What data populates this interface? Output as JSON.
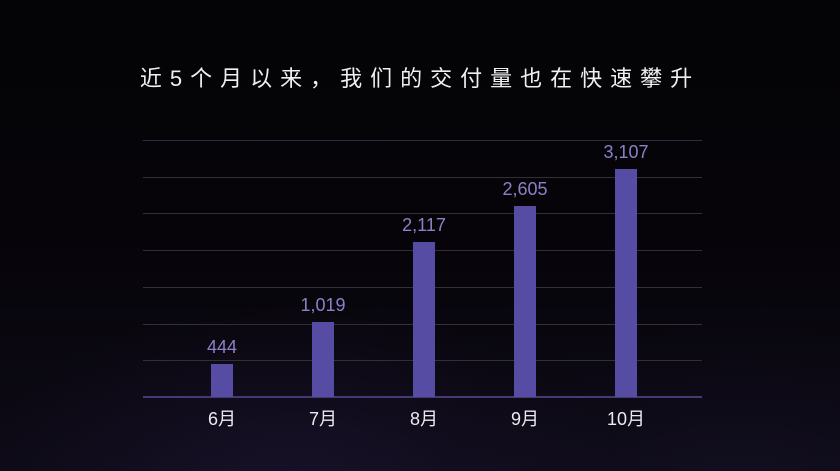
{
  "slide": {
    "title": "近5个月以来，我们的交付量也在快速攀升"
  },
  "chart_data": {
    "type": "bar",
    "title": "近5个月以来，我们的交付量也在快速攀升",
    "categories": [
      "6月",
      "7月",
      "8月",
      "9月",
      "10月"
    ],
    "values": [
      444,
      1019,
      2117,
      2605,
      3107
    ],
    "value_labels": [
      "444",
      "1,019",
      "2,117",
      "2,605",
      "3,107"
    ],
    "xlabel": "",
    "ylabel": "",
    "ylim": [
      0,
      3500
    ],
    "gridline_step": 500,
    "grid": true,
    "legend": false
  },
  "colors": {
    "bar": "#564ca3",
    "value_label": "#8b81c5",
    "axis_label": "#eceaf0",
    "gridline": "#312f38",
    "baseline": "#453a72",
    "title": "#f0eff2",
    "background": "#060409"
  }
}
